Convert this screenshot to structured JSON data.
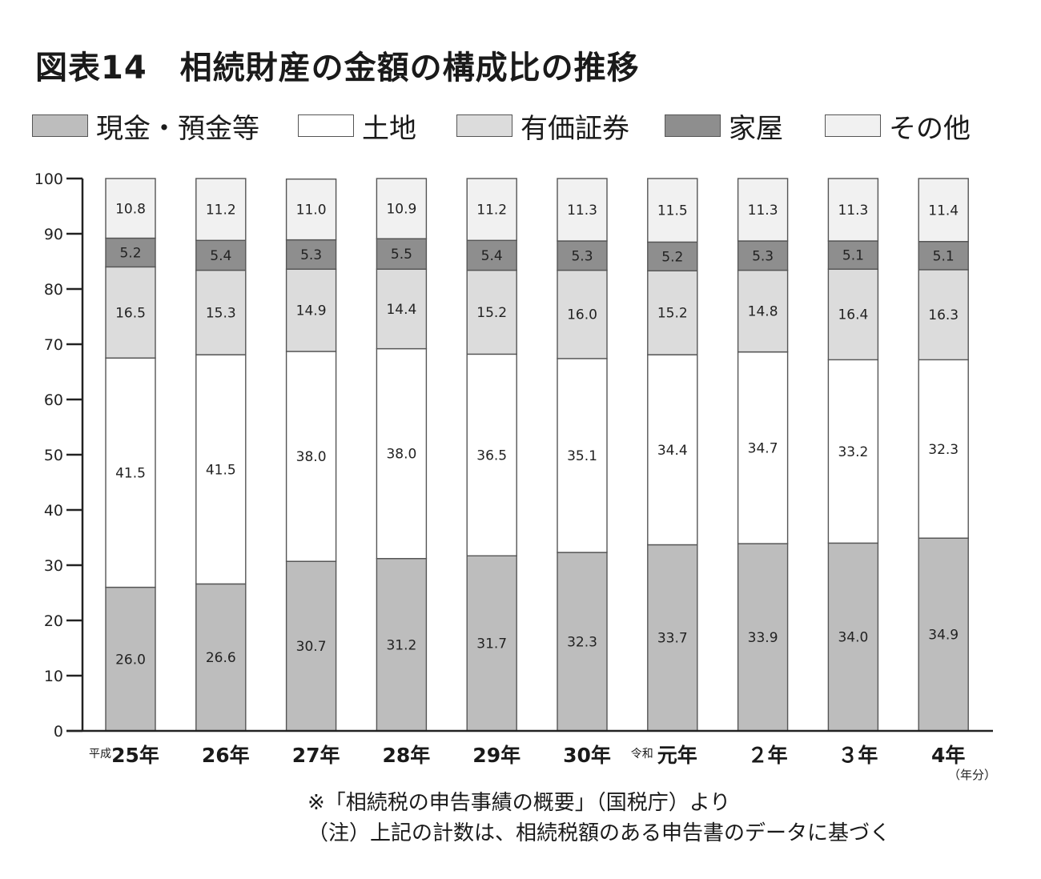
{
  "title": "図表14　相続財産の金額の構成比の推移",
  "unit_label": "（年分）",
  "notes": [
    "※「相続税の申告事績の概要」（国税庁）より",
    "（注）上記の計数は、相続税額のある申告書のデータに基づく"
  ],
  "chart_data": {
    "type": "bar",
    "stacked": true,
    "title": "図表14　相続財産の金額の構成比の推移",
    "xlabel": "",
    "ylabel": "",
    "ylim": [
      0,
      100
    ],
    "yticks": [
      0,
      10,
      20,
      30,
      40,
      50,
      60,
      70,
      80,
      90,
      100
    ],
    "grid": false,
    "legend_position": "top",
    "categories": [
      {
        "prefix": "平成",
        "label": "25年"
      },
      {
        "prefix": "",
        "label": "26年"
      },
      {
        "prefix": "",
        "label": "27年"
      },
      {
        "prefix": "",
        "label": "28年"
      },
      {
        "prefix": "",
        "label": "29年"
      },
      {
        "prefix": "",
        "label": "30年"
      },
      {
        "prefix": "令和",
        "label": "元年"
      },
      {
        "prefix": "",
        "label": "２年"
      },
      {
        "prefix": "",
        "label": "３年"
      },
      {
        "prefix": "",
        "label": "4年"
      }
    ],
    "series": [
      {
        "name": "現金・預金等",
        "color": "#bdbdbd",
        "values": [
          26.0,
          26.6,
          30.7,
          31.2,
          31.7,
          32.3,
          33.7,
          33.9,
          34.0,
          34.9
        ]
      },
      {
        "name": "土地",
        "color": "#ffffff",
        "values": [
          41.5,
          41.5,
          38.0,
          38.0,
          36.5,
          35.1,
          34.4,
          34.7,
          33.2,
          32.3
        ]
      },
      {
        "name": "有価証券",
        "color": "#dcdcdc",
        "values": [
          16.5,
          15.3,
          14.9,
          14.4,
          15.2,
          16.0,
          15.2,
          14.8,
          16.4,
          16.3
        ]
      },
      {
        "name": "家屋",
        "color": "#8e8e8e",
        "values": [
          5.2,
          5.4,
          5.3,
          5.5,
          5.4,
          5.3,
          5.2,
          5.3,
          5.1,
          5.1
        ]
      },
      {
        "name": "その他",
        "color": "#f1f1f1",
        "values": [
          10.8,
          11.2,
          11.0,
          10.9,
          11.2,
          11.3,
          11.5,
          11.3,
          11.3,
          11.4
        ]
      }
    ]
  }
}
